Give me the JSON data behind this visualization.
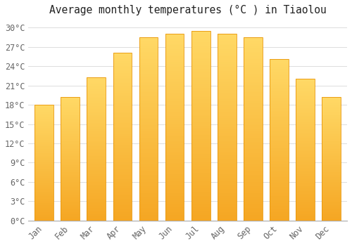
{
  "title": "Average monthly temperatures (°C ) in Tiaolou",
  "months": [
    "Jan",
    "Feb",
    "Mar",
    "Apr",
    "May",
    "Jun",
    "Jul",
    "Aug",
    "Sep",
    "Oct",
    "Nov",
    "Dec"
  ],
  "temperatures": [
    18.0,
    19.2,
    22.3,
    26.1,
    28.5,
    29.0,
    29.5,
    29.0,
    28.5,
    25.1,
    22.0,
    19.2
  ],
  "bar_color_bottom": "#F5A623",
  "bar_color_top": "#FFD966",
  "bar_edge_color": "#E8960A",
  "background_color": "#FFFFFF",
  "grid_color": "#DDDDDD",
  "ylim": [
    0,
    31
  ],
  "yticks": [
    0,
    3,
    6,
    9,
    12,
    15,
    18,
    21,
    24,
    27,
    30
  ],
  "ytick_labels": [
    "0°C",
    "3°C",
    "6°C",
    "9°C",
    "12°C",
    "15°C",
    "18°C",
    "21°C",
    "24°C",
    "27°C",
    "30°C"
  ],
  "title_fontsize": 10.5,
  "tick_fontsize": 8.5,
  "bar_width": 0.72,
  "n_gradient_steps": 100
}
